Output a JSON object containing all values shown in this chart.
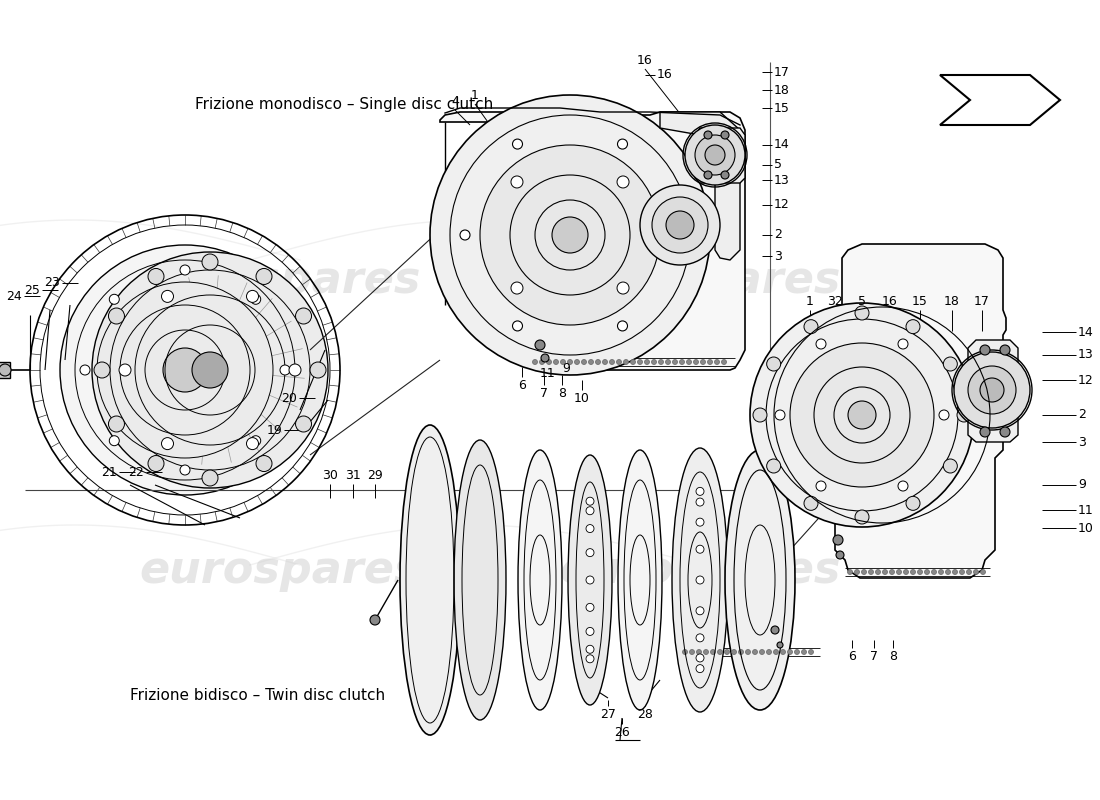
{
  "bg_color": "#ffffff",
  "line_color": "#000000",
  "watermark_text1": "eurospares",
  "watermark_text2": "eurospares",
  "wm_color": "#c8c8c8",
  "label_top": "Frizione monodisco – Single disc clutch",
  "label_bottom": "Frizione bidisco – Twin disc clutch",
  "label_fs": 11,
  "figsize": [
    11.0,
    8.0
  ],
  "dpi": 100,
  "lw": 1.0,
  "numbers_top_left": [
    [
      "4",
      455,
      118
    ],
    [
      "1",
      475,
      112
    ]
  ],
  "numbers_top_right": [
    [
      "16",
      645,
      75
    ],
    [
      "17",
      762,
      72
    ],
    [
      "18",
      762,
      90
    ],
    [
      "15",
      762,
      108
    ],
    [
      "14",
      762,
      145
    ],
    [
      "5",
      762,
      165
    ],
    [
      "13",
      762,
      180
    ],
    [
      "12",
      762,
      205
    ],
    [
      "2",
      762,
      235
    ],
    [
      "3",
      762,
      256
    ]
  ],
  "numbers_top_bottom": [
    [
      "6",
      522,
      367
    ],
    [
      "7",
      544,
      375
    ],
    [
      "8",
      562,
      375
    ],
    [
      "10",
      582,
      380
    ],
    [
      "9",
      566,
      350
    ],
    [
      "11",
      548,
      355
    ]
  ],
  "numbers_left": [
    [
      "24",
      30,
      296
    ],
    [
      "25",
      48,
      290
    ],
    [
      "23",
      68,
      283
    ],
    [
      "21",
      125,
      472
    ],
    [
      "22",
      152,
      472
    ],
    [
      "20",
      305,
      398
    ],
    [
      "19",
      290,
      430
    ]
  ],
  "numbers_bottom_left": [
    [
      "30",
      330,
      490
    ],
    [
      "31",
      353,
      490
    ],
    [
      "29",
      375,
      490
    ]
  ],
  "numbers_bottom_center": [
    [
      "27",
      608,
      700
    ],
    [
      "28",
      645,
      700
    ],
    [
      "26",
      622,
      718
    ]
  ],
  "numbers_right_top": [
    [
      "1",
      810,
      316
    ],
    [
      "32",
      835,
      316
    ],
    [
      "5",
      862,
      316
    ],
    [
      "16",
      890,
      316
    ],
    [
      "15",
      920,
      316
    ],
    [
      "18",
      952,
      316
    ],
    [
      "17",
      982,
      316
    ]
  ],
  "numbers_right_right": [
    [
      "14",
      1072,
      332
    ],
    [
      "13",
      1072,
      355
    ],
    [
      "12",
      1072,
      380
    ],
    [
      "2",
      1072,
      415
    ],
    [
      "3",
      1072,
      442
    ],
    [
      "9",
      1072,
      485
    ],
    [
      "11",
      1072,
      510
    ],
    [
      "10",
      1072,
      528
    ]
  ],
  "numbers_right_bottom": [
    [
      "6",
      852,
      640
    ],
    [
      "7",
      874,
      640
    ],
    [
      "8",
      893,
      640
    ]
  ]
}
